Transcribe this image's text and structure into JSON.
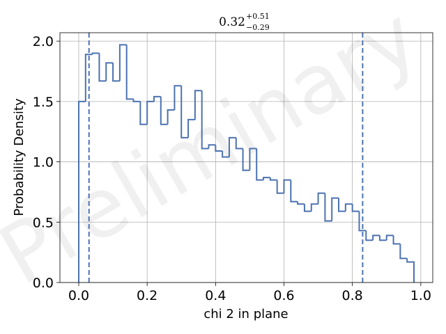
{
  "chart_data": {
    "type": "histogram",
    "title": {
      "value": "0.32",
      "upper": "+0.51",
      "lower": "−0.29"
    },
    "xlabel": "chi 2 in plane",
    "ylabel": "Probability Density",
    "watermark": "Preliminary",
    "xlim": [
      -0.055,
      1.035
    ],
    "ylim": [
      0,
      2.07
    ],
    "xticks": [
      0.0,
      0.2,
      0.4,
      0.6,
      0.8,
      1.0
    ],
    "xtick_labels": [
      "0.0",
      "0.2",
      "0.4",
      "0.6",
      "0.8",
      "1.0"
    ],
    "yticks": [
      0.0,
      0.5,
      1.0,
      1.5,
      2.0
    ],
    "ytick_labels": [
      "0.0",
      "0.5",
      "1.0",
      "1.5",
      "2.0"
    ],
    "grid": true,
    "line_color": "#4c72b0",
    "bin_edges": [
      0.0,
      0.02,
      0.04,
      0.06,
      0.08,
      0.1,
      0.12,
      0.14,
      0.16,
      0.18,
      0.2,
      0.22,
      0.24,
      0.26,
      0.28,
      0.3,
      0.32,
      0.34,
      0.36,
      0.38,
      0.4,
      0.42,
      0.44,
      0.46,
      0.48,
      0.5,
      0.52,
      0.54,
      0.56,
      0.58,
      0.6,
      0.62,
      0.64,
      0.66,
      0.68,
      0.7,
      0.72,
      0.74,
      0.76,
      0.78,
      0.8,
      0.82,
      0.84,
      0.86,
      0.88,
      0.9,
      0.92,
      0.94,
      0.96,
      0.98
    ],
    "densities": [
      1.5,
      1.89,
      1.9,
      1.67,
      1.82,
      1.67,
      1.97,
      1.52,
      1.5,
      1.31,
      1.5,
      1.54,
      1.31,
      1.43,
      1.63,
      1.2,
      1.35,
      1.59,
      1.11,
      1.14,
      1.09,
      1.04,
      1.2,
      1.11,
      0.93,
      1.11,
      0.85,
      0.87,
      0.85,
      0.74,
      0.85,
      0.67,
      0.65,
      0.59,
      0.65,
      0.74,
      0.51,
      0.7,
      0.59,
      0.65,
      0.59,
      0.43,
      0.35,
      0.39,
      0.35,
      0.39,
      0.32,
      0.2,
      0.17
    ],
    "credible_interval": [
      0.03,
      0.83
    ]
  }
}
